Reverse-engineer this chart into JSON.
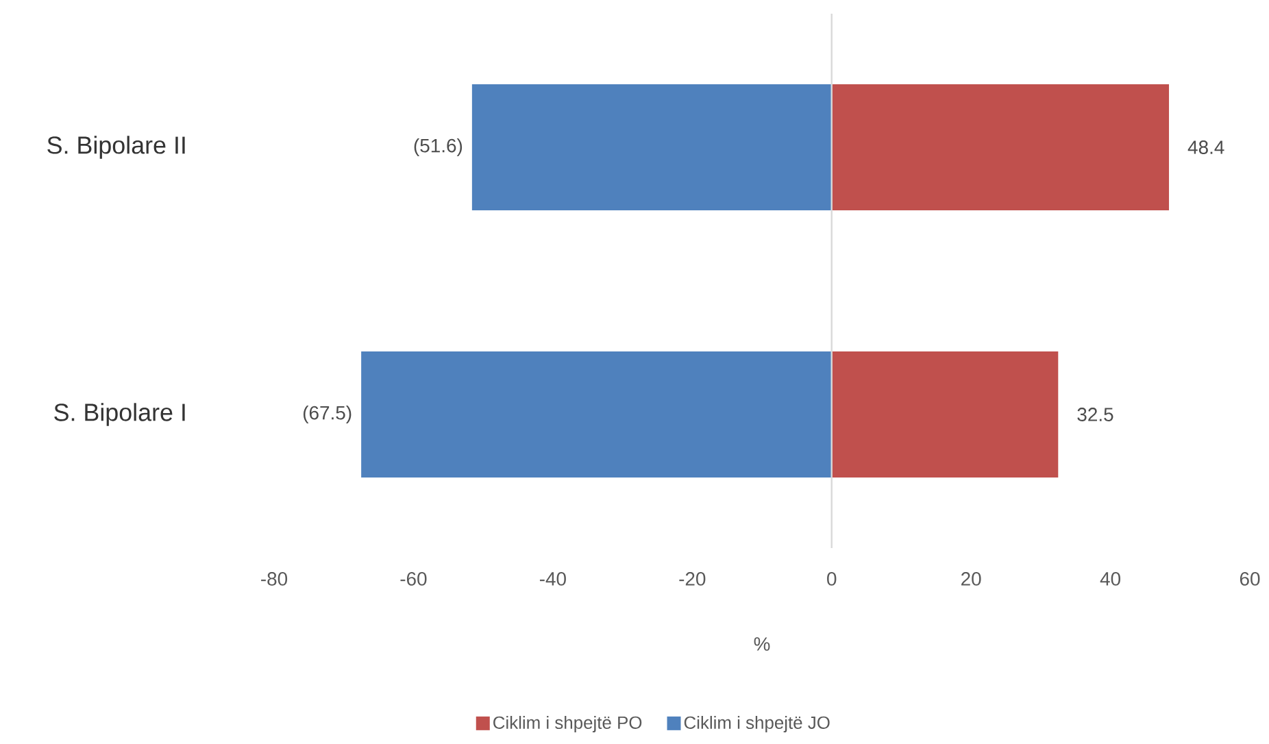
{
  "chart_data": {
    "type": "bar",
    "orientation": "horizontal",
    "categories": [
      "S. Bipolare II",
      "S. Bipolare I"
    ],
    "series": [
      {
        "name": "Ciklim i shpejtë PO",
        "color": "#c0504d",
        "values": [
          48.4,
          32.5
        ],
        "value_labels": [
          "48.4",
          "32.5"
        ]
      },
      {
        "name": "Ciklim i shpejtë JO",
        "color": "#4f81bd",
        "values": [
          -51.6,
          -67.5
        ],
        "value_labels": [
          "(51.6)",
          "(67.5)"
        ]
      }
    ],
    "stacked": true,
    "ref_lines": [
      {
        "axis": "x",
        "value": 0,
        "color": "#d9d9d9"
      }
    ],
    "xlim": [
      -80,
      60
    ],
    "xticks": [
      -80,
      -60,
      -40,
      -20,
      0,
      20,
      40,
      60
    ],
    "xlabel": "%",
    "legend": "bottom",
    "grid": false
  }
}
